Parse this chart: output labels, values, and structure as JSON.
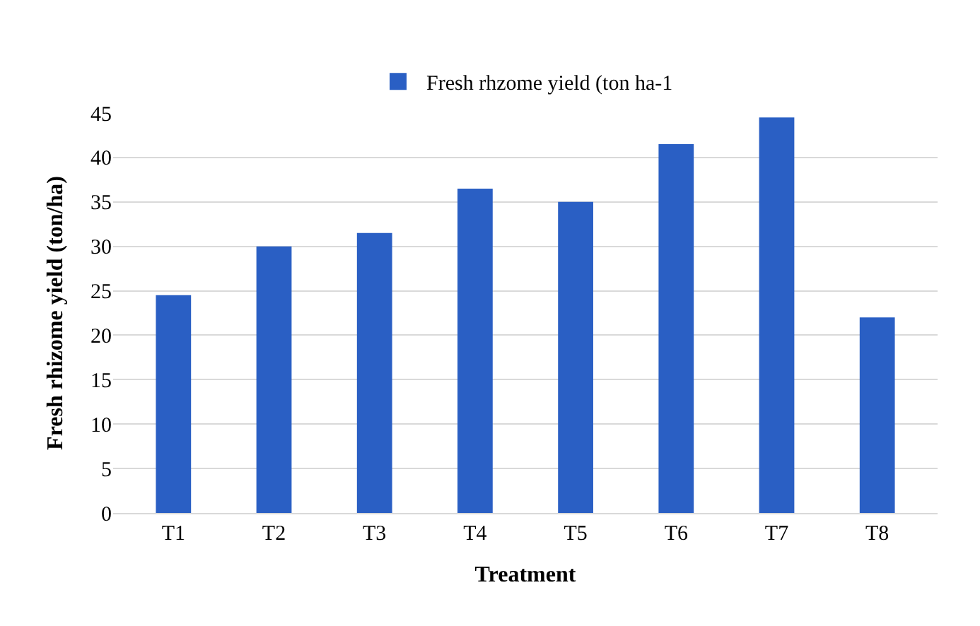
{
  "chart_data": {
    "type": "bar",
    "xlabel": "Treatment",
    "ylabel": "Fresh rhizome yield (ton/ha)",
    "categories": [
      "T1",
      "T2",
      "T3",
      "T4",
      "T5",
      "T6",
      "T7",
      "T8"
    ],
    "series": [
      {
        "name": "Fresh rhzome yield (ton ha-1",
        "color": "#2a5fc4",
        "values": [
          24.5,
          30,
          31.5,
          36.5,
          35,
          41.5,
          44.5,
          22
        ]
      }
    ],
    "ylim": [
      0,
      45
    ],
    "yticks": [
      0,
      5,
      10,
      15,
      20,
      25,
      30,
      35,
      40,
      45
    ],
    "grid": "y",
    "legend": "top"
  }
}
